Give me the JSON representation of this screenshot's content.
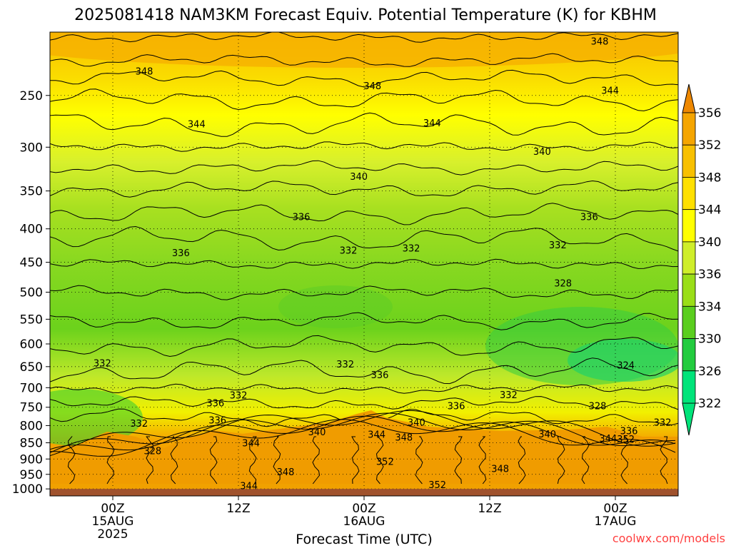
{
  "chart_data": {
    "type": "contour",
    "title": "2025081418 NAM3KM Forecast Equiv. Potential Temperature (K) for KBHM",
    "xlabel": "Forecast Time (UTC)",
    "ylabel": "",
    "credit": "coolwx.com/models",
    "x_unit": "hours since 2025-08-14 18Z",
    "xlim": [
      0,
      60
    ],
    "x_ticks": [
      {
        "hour": 6,
        "label": "00Z",
        "sub1": "15AUG",
        "sub2": "2025"
      },
      {
        "hour": 18,
        "label": "12Z",
        "sub1": "",
        "sub2": ""
      },
      {
        "hour": 30,
        "label": "00Z",
        "sub1": "16AUG",
        "sub2": ""
      },
      {
        "hour": 42,
        "label": "12Z",
        "sub1": "",
        "sub2": ""
      },
      {
        "hour": 54,
        "label": "00Z",
        "sub1": "17AUG",
        "sub2": ""
      }
    ],
    "y_unit": "hPa",
    "y_scale": "log",
    "ylim": [
      1025,
      200
    ],
    "y_ticks": [
      250,
      300,
      350,
      400,
      450,
      500,
      550,
      600,
      650,
      700,
      750,
      800,
      850,
      900,
      950,
      1000
    ],
    "ground_pressure": 1000,
    "ground_color": "#a0522d",
    "grid": true,
    "colorbar": {
      "ticks": [
        356,
        352,
        348,
        344,
        340,
        336,
        334,
        330,
        326,
        322
      ],
      "colors": [
        "#ee8800",
        "#f5a500",
        "#f8c000",
        "#ffe000",
        "#ffff00",
        "#cfee2a",
        "#9ade18",
        "#5ace1e",
        "#22cc3e",
        "#00e47a"
      ]
    },
    "contour_labels": [
      {
        "t": 52.5,
        "p": 207,
        "v": "348"
      },
      {
        "t": 9,
        "p": 230,
        "v": "348"
      },
      {
        "t": 30.8,
        "p": 242,
        "v": "348"
      },
      {
        "t": 53.5,
        "p": 246,
        "v": "344"
      },
      {
        "t": 14,
        "p": 277,
        "v": "344"
      },
      {
        "t": 36.5,
        "p": 276,
        "v": "344"
      },
      {
        "t": 47,
        "p": 305,
        "v": "340"
      },
      {
        "t": 29.5,
        "p": 333,
        "v": "340"
      },
      {
        "t": 24,
        "p": 384,
        "v": "336"
      },
      {
        "t": 51.5,
        "p": 384,
        "v": "336"
      },
      {
        "t": 48.5,
        "p": 424,
        "v": "332"
      },
      {
        "t": 12.5,
        "p": 436,
        "v": "336"
      },
      {
        "t": 28.5,
        "p": 432,
        "v": "332"
      },
      {
        "t": 34.5,
        "p": 429,
        "v": "332"
      },
      {
        "t": 49,
        "p": 485,
        "v": "328"
      },
      {
        "t": 55,
        "p": 648,
        "v": "324"
      },
      {
        "t": 5,
        "p": 643,
        "v": "332"
      },
      {
        "t": 28.2,
        "p": 645,
        "v": "332"
      },
      {
        "t": 31.5,
        "p": 670,
        "v": "336"
      },
      {
        "t": 18,
        "p": 720,
        "v": "332"
      },
      {
        "t": 43.8,
        "p": 719,
        "v": "332"
      },
      {
        "t": 15.8,
        "p": 740,
        "v": "336"
      },
      {
        "t": 38.8,
        "p": 748,
        "v": "336"
      },
      {
        "t": 52.3,
        "p": 748,
        "v": "328"
      },
      {
        "t": 8.5,
        "p": 795,
        "v": "332"
      },
      {
        "t": 16,
        "p": 786,
        "v": "336"
      },
      {
        "t": 35,
        "p": 792,
        "v": "340"
      },
      {
        "t": 58.5,
        "p": 792,
        "v": "332"
      },
      {
        "t": 25.5,
        "p": 820,
        "v": "340"
      },
      {
        "t": 47.5,
        "p": 826,
        "v": "340"
      },
      {
        "t": 55.3,
        "p": 816,
        "v": "336"
      },
      {
        "t": 31.2,
        "p": 827,
        "v": "344"
      },
      {
        "t": 33.8,
        "p": 835,
        "v": "348"
      },
      {
        "t": 53.3,
        "p": 838,
        "v": "344"
      },
      {
        "t": 55,
        "p": 840,
        "v": "352"
      },
      {
        "t": 19.2,
        "p": 852,
        "v": "344"
      },
      {
        "t": 9.8,
        "p": 876,
        "v": "328"
      },
      {
        "t": 32,
        "p": 910,
        "v": "352"
      },
      {
        "t": 43,
        "p": 933,
        "v": "348"
      },
      {
        "t": 22.5,
        "p": 943,
        "v": "348"
      },
      {
        "t": 37,
        "p": 987,
        "v": "352"
      },
      {
        "t": 19,
        "p": 991,
        "v": "344"
      }
    ]
  }
}
